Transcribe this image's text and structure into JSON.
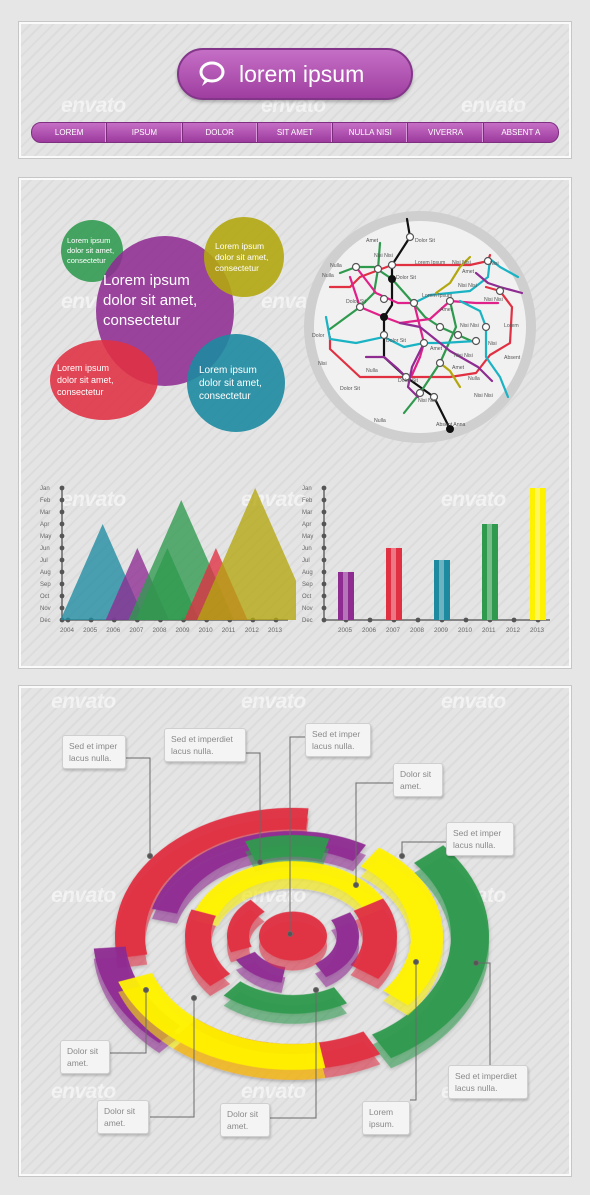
{
  "watermark": "envato",
  "header": {
    "search_label": "lorem ipsum",
    "nav": [
      "LOREM",
      "IPSUM",
      "DOLOR",
      "SIT AMET",
      "NULLA NISI",
      "VIVERRA",
      "ABSENT A"
    ]
  },
  "bubbles": {
    "green": "Lorem ipsum\ndolor sit amet,\nconsectetur",
    "purple": "Lorem ipsum\ndolor sit amet,\nconsectetur",
    "olive": "Lorem ipsum\ndolor sit amet,\nconsectetur",
    "red": "Lorem ipsum\ndolor sit amet,\nconsectetur",
    "teal": "Lorem ipsum\ndolor sit amet,\nconsectetur"
  },
  "colors": {
    "green": "#2f9a4e",
    "purple": "#8e2c92",
    "olive": "#b3a70f",
    "red": "#e03042",
    "teal": "#1d8aa0",
    "yellow": "#fff200"
  },
  "metro_labels": [
    "Amet",
    "Dolor Sit",
    "Nisi Nisi",
    "Lorem Ipsum",
    "Nisi Nisi",
    "Nisi",
    "Nulla",
    "Dolor Sit",
    "Amet",
    "Nulla",
    "Dolor Sit",
    "Lorem Ipsum",
    "Nisi Nisi",
    "Amet",
    "Nisi Nisi",
    "Nisi Nisi",
    "Lorem",
    "Dolor",
    "Amet",
    "Dolor Sit",
    "Nisi Nisi",
    "Nisi",
    "Absent",
    "Nisi",
    "Nulla",
    "Dolor Sit",
    "Nulla",
    "Amet",
    "Dolor Sit",
    "Nisi Nisi",
    "Nisi Nisi",
    "Nulla",
    "Absent Anna"
  ],
  "chart_data": [
    {
      "type": "area",
      "y_ticks": [
        "Jan",
        "Feb",
        "Mar",
        "Apr",
        "May",
        "Jun",
        "Jul",
        "Aug",
        "Sep",
        "Oct",
        "Nov",
        "Dec"
      ],
      "x_ticks": [
        "2004",
        "2005",
        "2006",
        "2007",
        "2008",
        "2009",
        "2010",
        "2011",
        "2012",
        "2013"
      ],
      "series": [
        {
          "color": "teal",
          "peak_x": 2005.5,
          "peak": "Apr"
        },
        {
          "color": "purple",
          "peak_x": 2007,
          "peak": "Jun"
        },
        {
          "color": "green",
          "peak_x": 2008.9,
          "peak": "Feb"
        },
        {
          "color": "green",
          "peak_x": 2008.3,
          "peak": "Jun"
        },
        {
          "color": "red",
          "peak_x": 2010.4,
          "peak": "Jun"
        },
        {
          "color": "olive",
          "peak_x": 2012.1,
          "peak": "Jan"
        }
      ]
    },
    {
      "type": "bar",
      "y_ticks": [
        "Jan",
        "Feb",
        "Mar",
        "Apr",
        "May",
        "Jun",
        "Jul",
        "Aug",
        "Sep",
        "Oct",
        "Nov",
        "Dec"
      ],
      "x_ticks": [
        "2005",
        "2006",
        "2007",
        "2008",
        "2009",
        "2010",
        "2011",
        "2012",
        "2013"
      ],
      "bars": [
        {
          "x": "2005",
          "value": "Aug",
          "color": "purple"
        },
        {
          "x": "2007",
          "value": "Jun",
          "color": "red"
        },
        {
          "x": "2009",
          "value": "Jul",
          "color": "teal"
        },
        {
          "x": "2011",
          "value": "Apr",
          "color": "green"
        },
        {
          "x": "2013",
          "value": "Jan",
          "color": "yellow"
        }
      ]
    }
  ],
  "callouts": {
    "c1": "Sed et imper\nlacus nulla.",
    "c2": "Sed et imperdiet\nlacus nulla.",
    "c3": "Sed et imper\nlacus nulla.",
    "c4": "Dolor sit\namet.",
    "c5": "Sed et imper\nlacus nulla.",
    "c6": "Dolor sit\namet.",
    "c7": "Dolor sit\namet.",
    "c8": "Dolor sit\namet.",
    "c9": "Lorem\nipsum.",
    "c10": "Sed et imperdiet\nlacus nulla."
  }
}
